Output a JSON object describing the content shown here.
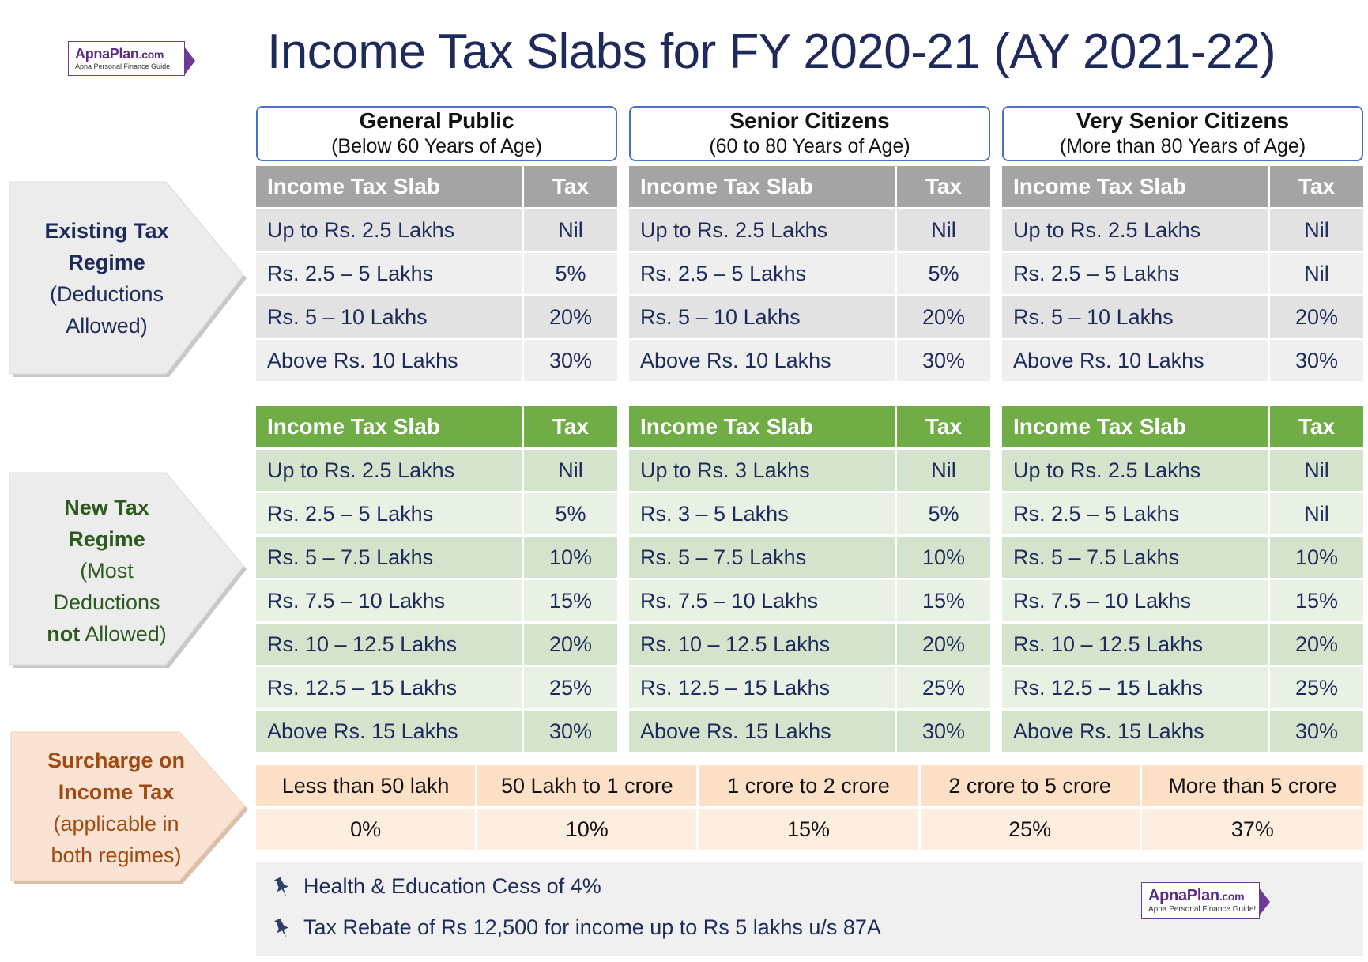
{
  "logo": {
    "brand": "ApnaPlan",
    "domain": ".com",
    "tagline": "Apna Personal Finance Guide!"
  },
  "title": "Income Tax Slabs for FY 2020-21 (AY 2021-22)",
  "categories": [
    {
      "name": "General Public",
      "sub": "(Below 60 Years of Age)"
    },
    {
      "name": "Senior Citizens",
      "sub": "(60 to 80 Years of Age)"
    },
    {
      "name": "Very Senior Citizens",
      "sub": "(More than 80 Years of Age)"
    }
  ],
  "table_headers": {
    "slab": "Income Tax Slab",
    "tax": "Tax"
  },
  "existing_regime": {
    "label_bold": [
      "Existing Tax",
      "Regime"
    ],
    "label_rest": [
      "(Deductions",
      "Allowed)"
    ],
    "tables": [
      [
        {
          "slab": "Up to Rs. 2.5 Lakhs",
          "tax": "Nil"
        },
        {
          "slab": "Rs. 2.5 – 5 Lakhs",
          "tax": "5%"
        },
        {
          "slab": "Rs. 5 – 10 Lakhs",
          "tax": "20%"
        },
        {
          "slab": "Above Rs. 10 Lakhs",
          "tax": "30%"
        }
      ],
      [
        {
          "slab": "Up to Rs. 2.5 Lakhs",
          "tax": "Nil"
        },
        {
          "slab": "Rs. 2.5 – 5 Lakhs",
          "tax": "5%"
        },
        {
          "slab": "Rs. 5 – 10 Lakhs",
          "tax": "20%"
        },
        {
          "slab": "Above Rs. 10 Lakhs",
          "tax": "30%"
        }
      ],
      [
        {
          "slab": "Up to Rs. 2.5 Lakhs",
          "tax": "Nil"
        },
        {
          "slab": "Rs. 2.5 – 5 Lakhs",
          "tax": "Nil"
        },
        {
          "slab": "Rs. 5 – 10 Lakhs",
          "tax": "20%"
        },
        {
          "slab": "Above Rs. 10 Lakhs",
          "tax": "30%"
        }
      ]
    ]
  },
  "new_regime": {
    "label_bold": [
      "New Tax",
      "Regime"
    ],
    "label_rest": [
      "(Most",
      "Deductions"
    ],
    "label_last_bold": "not",
    "label_last_rest": " Allowed)",
    "tables": [
      [
        {
          "slab": "Up to Rs. 2.5 Lakhs",
          "tax": "Nil"
        },
        {
          "slab": "Rs. 2.5 – 5 Lakhs",
          "tax": "5%"
        },
        {
          "slab": "Rs. 5 – 7.5 Lakhs",
          "tax": "10%"
        },
        {
          "slab": "Rs. 7.5 – 10 Lakhs",
          "tax": "15%"
        },
        {
          "slab": "Rs. 10 – 12.5 Lakhs",
          "tax": "20%"
        },
        {
          "slab": "Rs. 12.5 – 15 Lakhs",
          "tax": "25%"
        },
        {
          "slab": "Above Rs. 15 Lakhs",
          "tax": "30%"
        }
      ],
      [
        {
          "slab": "Up to Rs. 3 Lakhs",
          "tax": "Nil"
        },
        {
          "slab": "Rs. 3 – 5 Lakhs",
          "tax": "5%"
        },
        {
          "slab": "Rs. 5 – 7.5 Lakhs",
          "tax": "10%"
        },
        {
          "slab": "Rs. 7.5 – 10 Lakhs",
          "tax": "15%"
        },
        {
          "slab": "Rs. 10 – 12.5 Lakhs",
          "tax": "20%"
        },
        {
          "slab": "Rs. 12.5 – 15 Lakhs",
          "tax": "25%"
        },
        {
          "slab": "Above Rs. 15 Lakhs",
          "tax": "30%"
        }
      ],
      [
        {
          "slab": "Up to Rs. 2.5 Lakhs",
          "tax": "Nil"
        },
        {
          "slab": "Rs. 2.5 – 5 Lakhs",
          "tax": "Nil"
        },
        {
          "slab": "Rs. 5 – 7.5 Lakhs",
          "tax": "10%"
        },
        {
          "slab": "Rs. 7.5 – 10 Lakhs",
          "tax": "15%"
        },
        {
          "slab": "Rs. 10 – 12.5 Lakhs",
          "tax": "20%"
        },
        {
          "slab": "Rs. 12.5 – 15 Lakhs",
          "tax": "25%"
        },
        {
          "slab": "Above Rs. 15 Lakhs",
          "tax": "30%"
        }
      ]
    ]
  },
  "surcharge": {
    "label_bold": [
      "Surcharge on",
      "Income Tax"
    ],
    "label_rest": [
      "(applicable in",
      "both regimes)"
    ],
    "ranges": [
      "Less than 50 lakh",
      "50 Lakh to 1 crore",
      "1 crore to 2 crore",
      "2 crore to 5 crore",
      "More than 5 crore"
    ],
    "rates": [
      "0%",
      "10%",
      "15%",
      "25%",
      "37%"
    ]
  },
  "notes": [
    "Health & Education Cess of 4%",
    "Tax Rebate of Rs 12,500 for income up to Rs 5 lakhs u/s 87A"
  ],
  "colors": {
    "title": "#1f2a5c",
    "existing_header": "#a4a4a4",
    "new_header": "#70ad47",
    "surcharge_header": "#fde0c6",
    "existing_label": "#1f2a5c",
    "new_label": "#2d5a1e",
    "surcharge_label": "#a04a12"
  }
}
